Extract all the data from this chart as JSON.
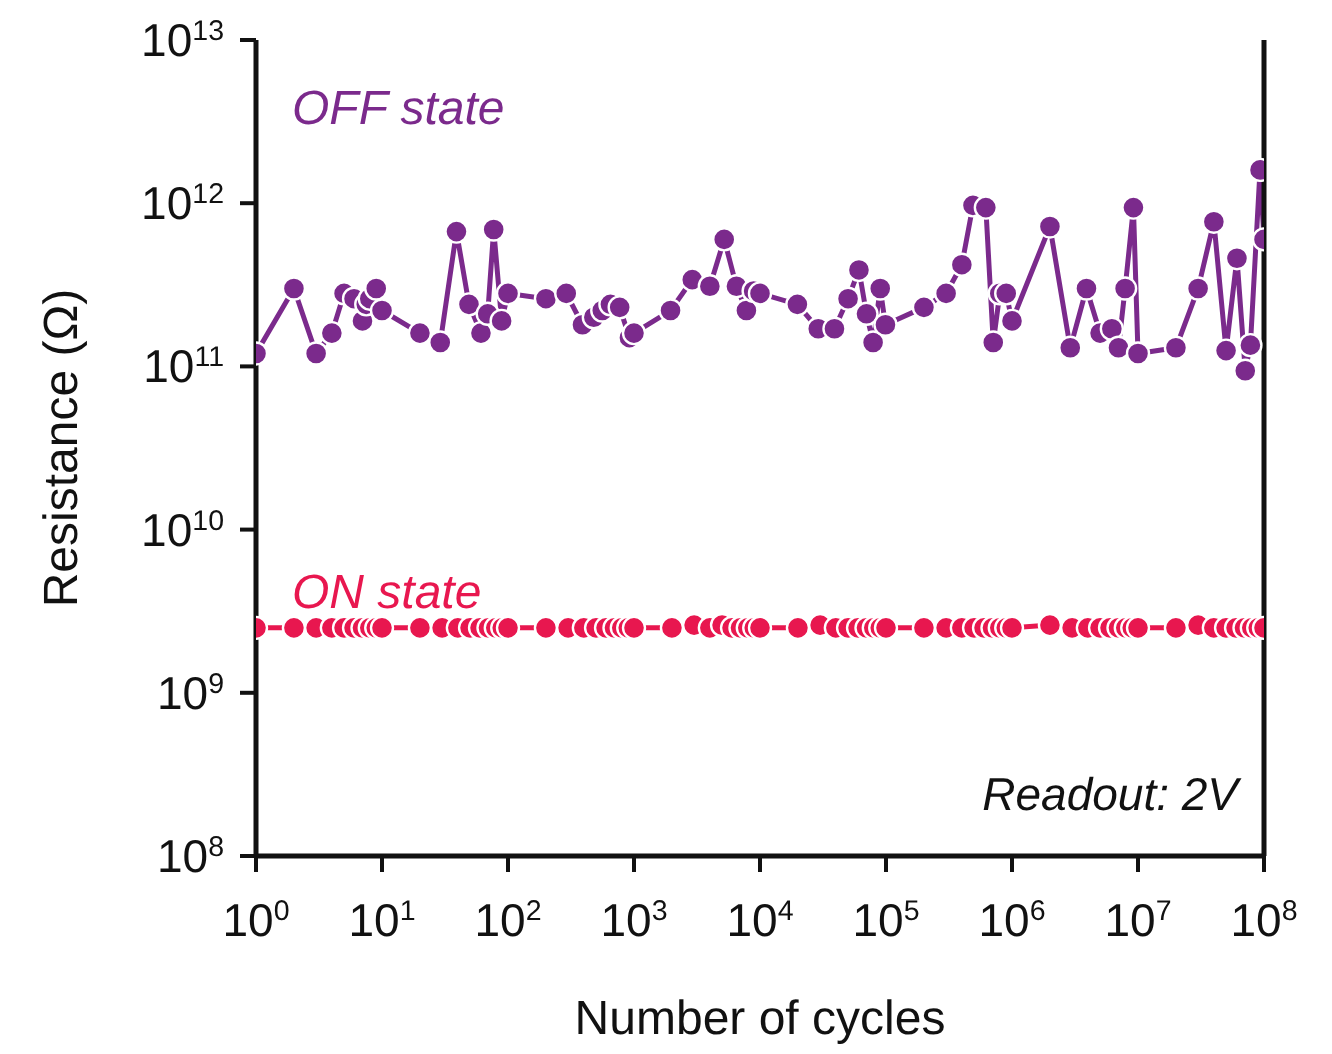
{
  "chart_data": {
    "type": "line",
    "xlabel": "Number of cycles",
    "ylabel": "Resistance (Ω)",
    "log": "xy",
    "xlim": [
      1,
      100000000
    ],
    "ylim": [
      100000000,
      10000000000000
    ],
    "xticks": [
      {
        "value": 1,
        "label": "10$^{0}$"
      },
      {
        "value": 10,
        "label": "10$^{1}$"
      },
      {
        "value": 100,
        "label": "10$^{2}$"
      },
      {
        "value": 1000,
        "label": "10$^{3}$"
      },
      {
        "value": 10000,
        "label": "10$^{4}$"
      },
      {
        "value": 100000,
        "label": "10$^{5}$"
      },
      {
        "value": 1000000,
        "label": "10$^{6}$"
      },
      {
        "value": 10000000,
        "label": "10$^{7}$"
      },
      {
        "value": 100000000,
        "label": "10$^{8}$"
      }
    ],
    "yticks": [
      {
        "value": 100000000,
        "label": "10$^{8}$"
      },
      {
        "value": 1000000000,
        "label": "10$^{9}$"
      },
      {
        "value": 10000000000,
        "label": "10$^{10}$"
      },
      {
        "value": 100000000000,
        "label": "10$^{11}$"
      },
      {
        "value": 1000000000000,
        "label": "10$^{12}$"
      },
      {
        "value": 10000000000000,
        "label": "10$^{13}$"
      }
    ],
    "grid": false,
    "legend": false,
    "marker": "circle",
    "line_style": "solid",
    "annotations": [
      "Readout: 2V"
    ],
    "series": [
      {
        "name": "OFF state",
        "color": "#7b2a8c",
        "x": [
          1,
          2,
          3,
          4,
          5,
          6,
          7,
          7.5,
          8,
          9,
          10,
          20,
          29,
          39,
          49,
          61,
          69,
          77,
          89,
          100,
          200,
          290,
          390,
          480,
          560,
          650,
          770,
          920,
          1000,
          1950,
          2900,
          4000,
          5200,
          6500,
          7800,
          8900,
          10000,
          19800,
          29000,
          39000,
          50000,
          61000,
          70000,
          79000,
          90000,
          99000,
          200000,
          300000,
          400000,
          490000,
          620000,
          710000,
          800000,
          900000,
          1000000,
          2000000,
          2900000,
          3900000,
          5000000,
          6200000,
          7000000,
          7900000,
          9200000,
          10000000,
          20000000,
          30000000,
          40000000,
          50000000,
          61000000,
          71000000,
          78000000,
          93000000,
          100000000
        ],
        "values": [
          120000000000,
          300000000000,
          120000000000,
          160000000000,
          280000000000,
          260000000000,
          190000000000,
          240000000000,
          260000000000,
          300000000000,
          220000000000,
          160000000000,
          140000000000,
          670000000000,
          240000000000,
          160000000000,
          210000000000,
          690000000000,
          190000000000,
          280000000000,
          260000000000,
          280000000000,
          180000000000,
          200000000000,
          220000000000,
          240000000000,
          230000000000,
          150000000000,
          160000000000,
          220000000000,
          340000000000,
          310000000000,
          600000000000,
          310000000000,
          220000000000,
          290000000000,
          280000000000,
          240000000000,
          170000000000,
          170000000000,
          260000000000,
          390000000000,
          210000000000,
          140000000000,
          300000000000,
          180000000000,
          230000000000,
          280000000000,
          420000000000,
          970000000000,
          940000000000,
          140000000000,
          280000000000,
          280000000000,
          190000000000,
          720000000000,
          130000000000,
          300000000000,
          160000000000,
          170000000000,
          130000000000,
          300000000000,
          940000000000,
          120000000000,
          130000000000,
          300000000000,
          770000000000,
          125000000000,
          460000000000,
          94000000000,
          135000000000,
          1600000000000,
          600000000000
        ]
      },
      {
        "name": "ON state",
        "color": "#e8174f",
        "x": [
          1,
          2,
          3,
          4,
          5,
          6,
          7,
          8,
          9,
          10,
          20,
          30,
          40,
          50,
          60,
          70,
          80,
          90,
          100,
          200,
          300,
          400,
          500,
          600,
          700,
          800,
          900,
          1000,
          2000,
          3000,
          4000,
          5000,
          6000,
          7000,
          8000,
          9000,
          10000,
          20000,
          30000,
          40000,
          50000,
          60000,
          70000,
          80000,
          90000,
          100000,
          200000,
          300000,
          400000,
          500000,
          600000,
          700000,
          800000,
          900000,
          1000000,
          2000000,
          3000000,
          4000000,
          5000000,
          6000000,
          7000000,
          8000000,
          9000000,
          10000000,
          20000000,
          30000000,
          40000000,
          50000000,
          60000000,
          70000000,
          80000000,
          90000000,
          100000000
        ],
        "values": [
          2500000000,
          2500000000,
          2500000000,
          2500000000,
          2500000000,
          2500000000,
          2500000000,
          2500000000,
          2500000000,
          2500000000,
          2500000000,
          2500000000,
          2500000000,
          2500000000,
          2500000000,
          2500000000,
          2500000000,
          2500000000,
          2500000000,
          2500000000,
          2500000000,
          2500000000,
          2500000000,
          2500000000,
          2500000000,
          2500000000,
          2500000000,
          2500000000,
          2500000000,
          2600000000,
          2500000000,
          2600000000,
          2500000000,
          2500000000,
          2500000000,
          2500000000,
          2500000000,
          2500000000,
          2600000000,
          2500000000,
          2500000000,
          2500000000,
          2500000000,
          2500000000,
          2500000000,
          2500000000,
          2500000000,
          2500000000,
          2500000000,
          2500000000,
          2500000000,
          2500000000,
          2500000000,
          2500000000,
          2500000000,
          2600000000,
          2500000000,
          2500000000,
          2500000000,
          2500000000,
          2500000000,
          2500000000,
          2500000000,
          2500000000,
          2500000000,
          2600000000,
          2500000000,
          2500000000,
          2500000000,
          2500000000,
          2500000000,
          2500000000,
          2500000000
        ]
      }
    ]
  }
}
